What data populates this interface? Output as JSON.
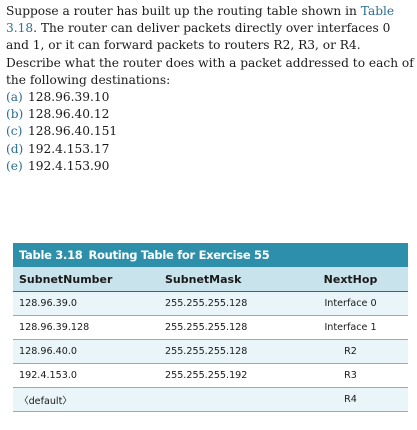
{
  "question": {
    "intro_before_ref": "Suppose a router has built up the routing table shown in",
    "table_ref": "Table 3.18",
    "intro_after_ref": ". The router can deliver packets directly over interfaces 0 and 1, or it can forward packets to routers R2, R3, or R4. Describe what the router does with a packet addressed to each of the following destinations:",
    "options": [
      {
        "letter": "(a)",
        "address": "128.96.39.10"
      },
      {
        "letter": "(b)",
        "address": "128.96.40.12"
      },
      {
        "letter": "(c)",
        "address": "128.96.40.151"
      },
      {
        "letter": "(d)",
        "address": "192.4.153.17"
      },
      {
        "letter": "(e)",
        "address": "192.4.153.90"
      }
    ]
  },
  "table": {
    "caption_number": "Table 3.18",
    "caption_title": "Routing Table for Exercise 55",
    "headers": [
      "SubnetNumber",
      "SubnetMask",
      "NextHop"
    ],
    "rows": [
      [
        "128.96.39.0",
        "255.255.255.128",
        "Interface 0"
      ],
      [
        "128.96.39.128",
        "255.255.255.128",
        "Interface 1"
      ],
      [
        "128.96.40.0",
        "255.255.255.128",
        "R2"
      ],
      [
        "192.4.153.0",
        "255.255.255.192",
        "R3"
      ],
      [
        "〈default〉",
        "",
        "R4"
      ]
    ]
  },
  "colors": {
    "caption_bg": "#2e8fab",
    "header_bg": "#c9e3ec",
    "row_stripe": "#eaf5f9",
    "link_text": "#2b6f93"
  }
}
